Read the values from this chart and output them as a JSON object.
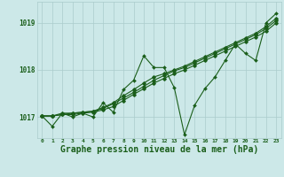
{
  "background_color": "#cce8e8",
  "grid_color": "#aacccc",
  "line_color": "#1a5e1a",
  "marker_color": "#1a5e1a",
  "xlabel": "Graphe pression niveau de la mer (hPa)",
  "xlabel_fontsize": 7,
  "ylabel_ticks": [
    1017,
    1018,
    1019
  ],
  "xlim": [
    -0.5,
    23.5
  ],
  "ylim": [
    1016.55,
    1019.45
  ],
  "x": [
    0,
    1,
    2,
    3,
    4,
    5,
    6,
    7,
    8,
    9,
    10,
    11,
    12,
    13,
    14,
    15,
    16,
    17,
    18,
    19,
    20,
    21,
    22,
    23
  ],
  "series_jagged": [
    1017.02,
    1016.8,
    1017.08,
    1017.0,
    1017.08,
    1017.0,
    1017.3,
    1017.1,
    1017.58,
    1017.78,
    1018.3,
    1018.05,
    1018.05,
    1017.62,
    1016.62,
    1017.25,
    1017.6,
    1017.85,
    1018.2,
    1018.55,
    1018.35,
    1018.2,
    1019.0,
    1019.2
  ],
  "series_line1": [
    1017.02,
    1017.02,
    1017.08,
    1017.08,
    1017.1,
    1017.12,
    1017.2,
    1017.3,
    1017.45,
    1017.58,
    1017.72,
    1017.85,
    1017.92,
    1018.0,
    1018.08,
    1018.18,
    1018.28,
    1018.38,
    1018.48,
    1018.58,
    1018.68,
    1018.78,
    1018.92,
    1019.1
  ],
  "series_line2": [
    1017.02,
    1017.02,
    1017.05,
    1017.08,
    1017.1,
    1017.12,
    1017.18,
    1017.28,
    1017.4,
    1017.52,
    1017.65,
    1017.78,
    1017.88,
    1017.98,
    1018.05,
    1018.15,
    1018.25,
    1018.35,
    1018.45,
    1018.55,
    1018.65,
    1018.75,
    1018.88,
    1019.05
  ],
  "series_line3": [
    1017.02,
    1017.02,
    1017.05,
    1017.05,
    1017.08,
    1017.1,
    1017.15,
    1017.22,
    1017.35,
    1017.48,
    1017.6,
    1017.72,
    1017.82,
    1017.92,
    1018.0,
    1018.1,
    1018.2,
    1018.3,
    1018.4,
    1018.5,
    1018.6,
    1018.7,
    1018.82,
    1019.0
  ]
}
